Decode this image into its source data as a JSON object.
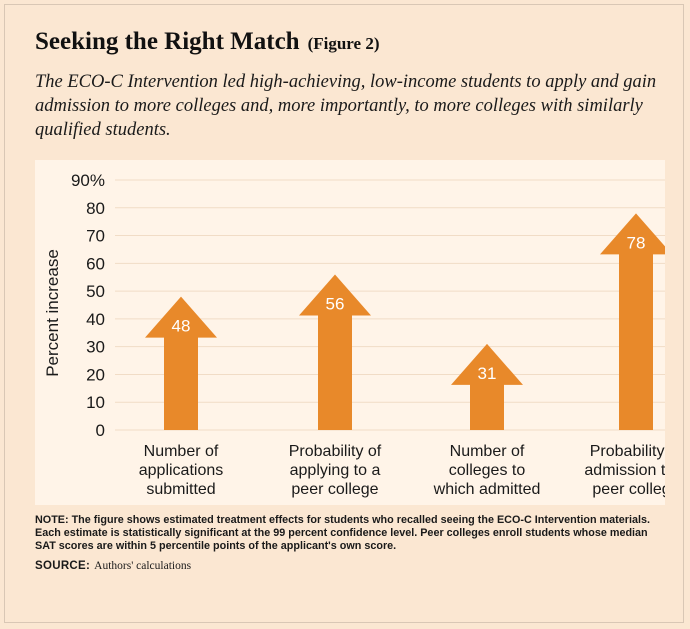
{
  "title": "Seeking the Right Match",
  "figure_label": "(Figure 2)",
  "subtitle": "The ECO-C Intervention led high-achieving, low-income students to apply and gain admission to more colleges and, more importantly, to more colleges with similarly qualified students.",
  "note": "NOTE: The figure shows estimated treatment effects for students who recalled seeing the ECO-C Intervention materials. Each estimate is statistically significant at the 99 percent confidence level. Peer colleges enroll students whose median SAT scores are within 5 percentile points of the applicant's own score.",
  "source_label": "SOURCE:",
  "source_text": "Authors' calculations",
  "colors": {
    "background": "#fbe7d2",
    "plot_background": "#fff4e8",
    "arrow": "#e8892a",
    "gridline": "#f1dcc6",
    "label_text": "#ffffff"
  },
  "chart_data": {
    "type": "bar",
    "bar_style": "upward arrows",
    "categories": [
      [
        "Number of",
        "applications",
        "submitted"
      ],
      [
        "Probability of",
        "applying to a",
        "peer college"
      ],
      [
        "Number of",
        "colleges to",
        "which admitted"
      ],
      [
        "Probability of",
        "admission to a",
        "peer college"
      ]
    ],
    "values": [
      48,
      56,
      31,
      78
    ],
    "value_labels": [
      "48",
      "56",
      "31",
      "78"
    ],
    "ylabel": "Percent increase",
    "yticks": [
      "0",
      "10",
      "20",
      "30",
      "40",
      "50",
      "60",
      "70",
      "80",
      "90%"
    ],
    "ylim": [
      0,
      90
    ],
    "grid": true
  }
}
